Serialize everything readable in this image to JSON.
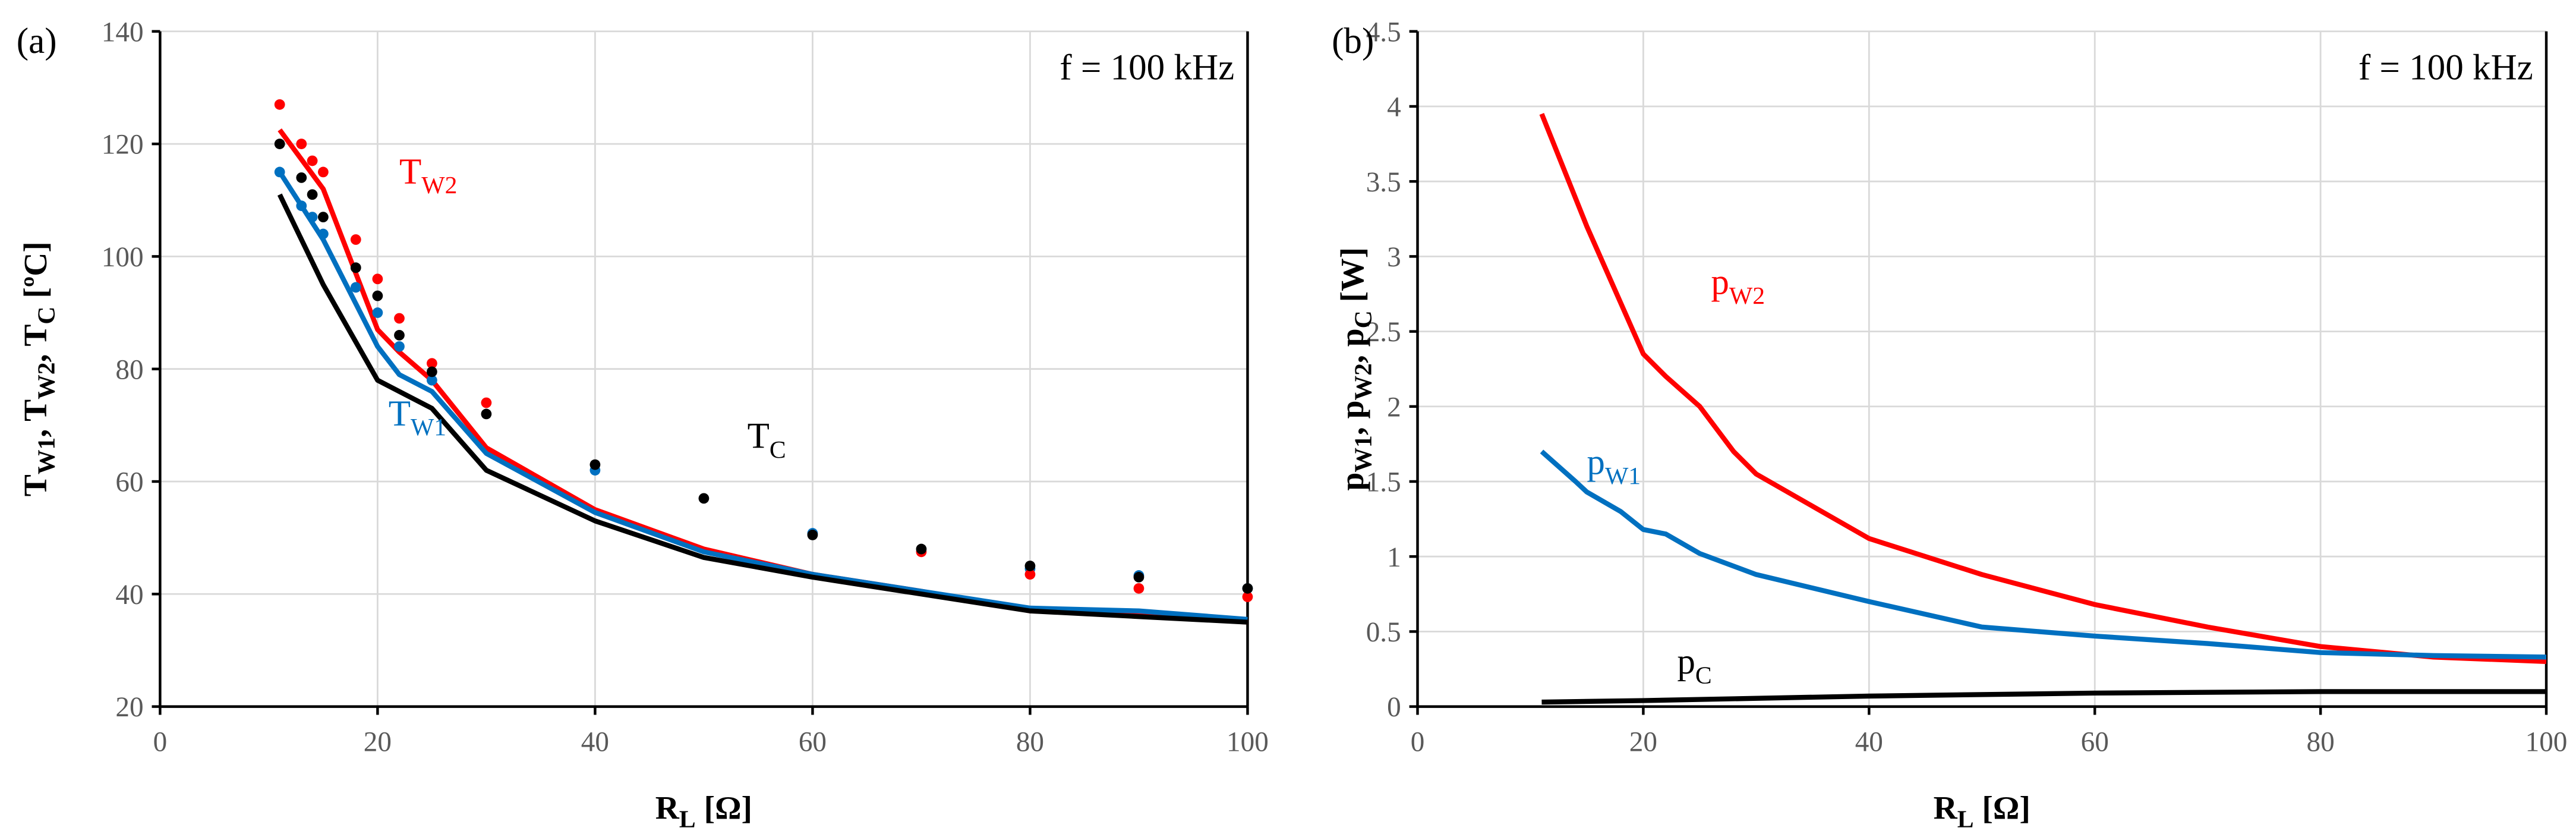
{
  "chart_data": [
    {
      "type": "line",
      "panel": "(a)",
      "annotation": "f = 100 kHz",
      "xlabel": {
        "main": "R",
        "sub": "L",
        "rest": " [Ω]"
      },
      "ylabel": [
        [
          "T",
          ""
        ],
        [
          "W1",
          true
        ],
        [
          ", T",
          ""
        ],
        [
          "W2",
          true
        ],
        [
          ", T",
          ""
        ],
        [
          "C",
          true
        ],
        [
          " [ºC]",
          ""
        ]
      ],
      "xlim": [
        0,
        100
      ],
      "ylim": [
        20,
        140
      ],
      "xticks": [
        0,
        20,
        40,
        60,
        80,
        100
      ],
      "yticks": [
        20,
        40,
        60,
        80,
        100,
        120,
        140
      ],
      "grid": true,
      "series": [
        {
          "name": "T_W2 calc",
          "color": "#ff0000",
          "kind": "line",
          "x": [
            11,
            15,
            20,
            22,
            25,
            30,
            40,
            50,
            60,
            70,
            80,
            90,
            100
          ],
          "y": [
            122.5,
            112,
            87,
            83,
            78,
            66,
            55,
            48,
            43.5,
            40.5,
            37,
            36.5,
            35
          ]
        },
        {
          "name": "T_W1 calc",
          "color": "#0070c0",
          "kind": "line",
          "x": [
            11,
            15,
            20,
            22,
            25,
            30,
            40,
            50,
            60,
            70,
            80,
            90,
            100
          ],
          "y": [
            115,
            103,
            84,
            79,
            76,
            65,
            54.5,
            47.5,
            43.5,
            40.5,
            37.5,
            37,
            35.5
          ]
        },
        {
          "name": "T_C calc",
          "color": "#000000",
          "kind": "line",
          "x": [
            11,
            15,
            20,
            22,
            25,
            30,
            40,
            50,
            60,
            70,
            80,
            90,
            100
          ],
          "y": [
            111,
            95,
            78,
            76,
            73,
            62,
            53,
            46.5,
            43,
            40,
            37,
            36,
            35
          ]
        },
        {
          "name": "T_W1 meas",
          "color": "#0070c0",
          "kind": "points",
          "x": [
            11,
            13,
            14,
            15,
            18,
            20,
            22,
            25,
            40,
            60,
            80,
            90,
            100
          ],
          "y": [
            115,
            109,
            107,
            104,
            94.5,
            90,
            84,
            78,
            62,
            50.8,
            44.5,
            43.3,
            41
          ]
        },
        {
          "name": "T_W2 meas",
          "color": "#ff0000",
          "kind": "points",
          "x": [
            11,
            13,
            14,
            15,
            18,
            20,
            22,
            25,
            30,
            70,
            80,
            90,
            100
          ],
          "y": [
            127,
            120,
            117,
            115,
            103,
            96,
            89,
            81,
            74,
            47.5,
            43.5,
            41,
            39.5
          ]
        },
        {
          "name": "T_C meas",
          "color": "#000000",
          "kind": "points",
          "x": [
            11,
            13,
            14,
            15,
            18,
            20,
            22,
            25,
            30,
            40,
            50,
            60,
            70,
            80,
            90,
            100
          ],
          "y": [
            120,
            114,
            111,
            107,
            98,
            93,
            86,
            79.5,
            72,
            63,
            57,
            50.5,
            48,
            45,
            43,
            41
          ]
        }
      ],
      "labels": [
        {
          "main": "T",
          "sub": "W2",
          "color": "#ff0000",
          "x": 22,
          "y": 113
        },
        {
          "main": "T",
          "sub": "W1",
          "color": "#0070c0",
          "x": 21,
          "y": 70
        },
        {
          "main": "T",
          "sub": "C",
          "color": "#000000",
          "x": 54,
          "y": 66
        }
      ]
    },
    {
      "type": "line",
      "panel": "(b)",
      "annotation": "f = 100 kHz",
      "xlabel": {
        "main": "R",
        "sub": "L",
        "rest": " [Ω]"
      },
      "ylabel": [
        [
          "p",
          ""
        ],
        [
          "W1",
          true
        ],
        [
          ", p",
          ""
        ],
        [
          "W2",
          true
        ],
        [
          ", p",
          ""
        ],
        [
          "C",
          true
        ],
        [
          " [W]",
          ""
        ]
      ],
      "xlim": [
        0,
        100
      ],
      "ylim": [
        0,
        4.5
      ],
      "xticks": [
        0,
        20,
        40,
        60,
        80,
        100
      ],
      "yticks": [
        0,
        0.5,
        1,
        1.5,
        2,
        2.5,
        3,
        3.5,
        4,
        4.5
      ],
      "grid": true,
      "series": [
        {
          "name": "p_W2",
          "color": "#ff0000",
          "kind": "line",
          "x": [
            11,
            15,
            20,
            22,
            25,
            28,
            30,
            40,
            50,
            60,
            70,
            80,
            90,
            100
          ],
          "y": [
            3.95,
            3.2,
            2.35,
            2.2,
            2.0,
            1.7,
            1.55,
            1.12,
            0.88,
            0.68,
            0.53,
            0.4,
            0.33,
            0.3
          ]
        },
        {
          "name": "p_W1",
          "color": "#0070c0",
          "kind": "line",
          "x": [
            11,
            14,
            15,
            18,
            20,
            22,
            25,
            30,
            40,
            50,
            60,
            70,
            80,
            90,
            100
          ],
          "y": [
            1.7,
            1.5,
            1.43,
            1.3,
            1.18,
            1.15,
            1.02,
            0.88,
            0.7,
            0.53,
            0.47,
            0.42,
            0.36,
            0.34,
            0.33
          ]
        },
        {
          "name": "p_C",
          "color": "#000000",
          "kind": "line",
          "x": [
            11,
            20,
            40,
            60,
            80,
            100
          ],
          "y": [
            0.03,
            0.04,
            0.07,
            0.09,
            0.1,
            0.1
          ]
        }
      ],
      "labels": [
        {
          "main": "p",
          "sub": "W2",
          "color": "#ff0000",
          "x": 26,
          "y": 2.75
        },
        {
          "main": "p",
          "sub": "W1",
          "color": "#0070c0",
          "x": 15,
          "y": 1.55
        },
        {
          "main": "p",
          "sub": "C",
          "color": "#000000",
          "x": 23,
          "y": 0.22
        }
      ]
    }
  ]
}
